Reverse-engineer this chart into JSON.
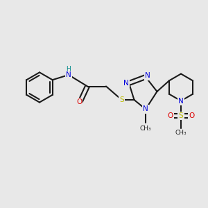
{
  "bg": "#e8e8e8",
  "bond_color": "#1a1a1a",
  "bond_lw": 1.5,
  "colors": {
    "N": "#0000dd",
    "O": "#dd0000",
    "S": "#bbbb00",
    "H": "#008888",
    "C": "#1a1a1a"
  },
  "figsize": [
    3.0,
    3.0
  ],
  "dpi": 100,
  "xlim": [
    0,
    10
  ],
  "ylim": [
    0,
    10
  ]
}
